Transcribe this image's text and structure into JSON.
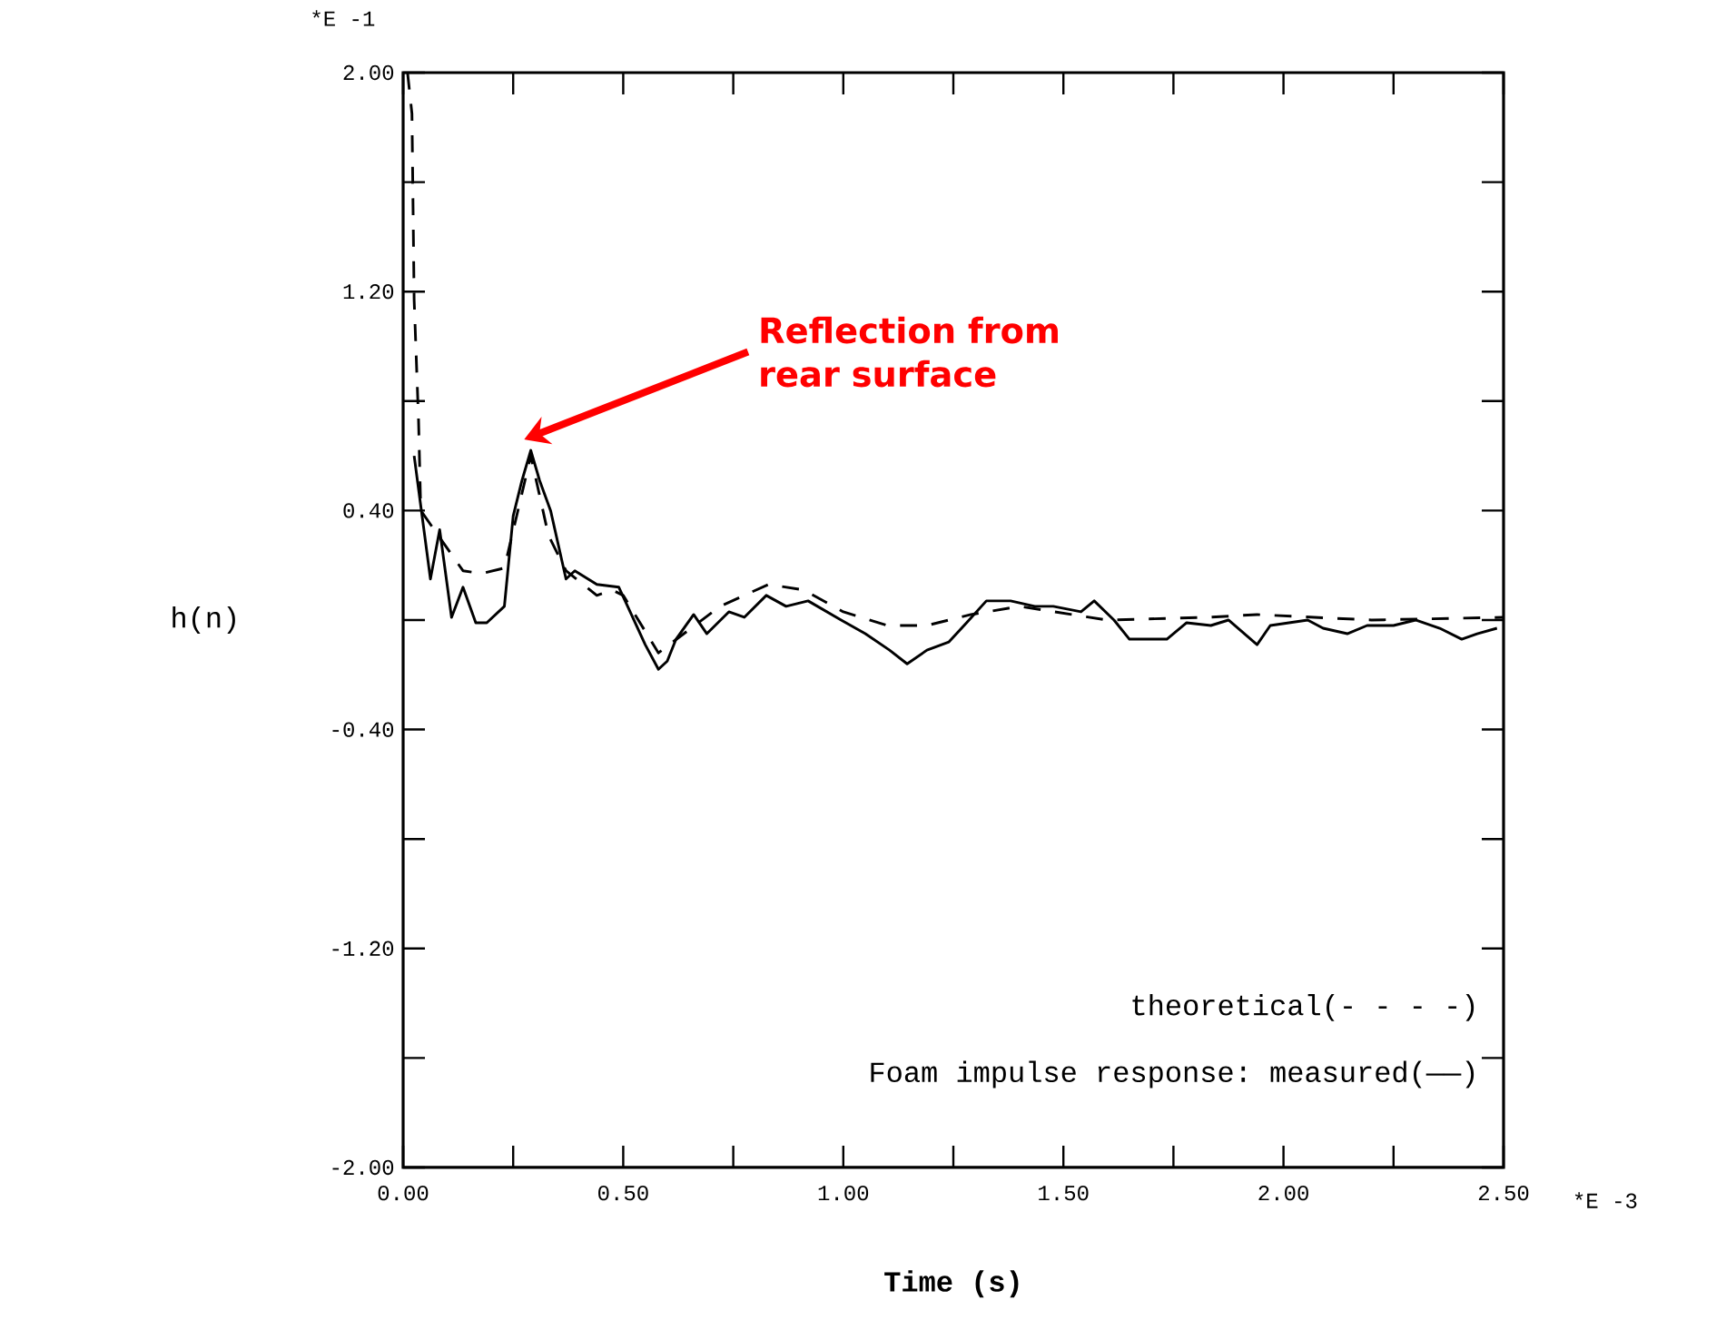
{
  "chart_data": {
    "type": "line",
    "xlabel": "Time (s)",
    "ylabel": "h(n)",
    "xlim": [
      0,
      2.5
    ],
    "ylim": [
      -2,
      2
    ],
    "xticks": [
      {
        "value": 0,
        "label": "0.00"
      },
      {
        "value": 0.25,
        "label": null
      },
      {
        "value": 0.5,
        "label": "0.50"
      },
      {
        "value": 0.75,
        "label": null
      },
      {
        "value": 1,
        "label": "1.00"
      },
      {
        "value": 1.25,
        "label": null
      },
      {
        "value": 1.5,
        "label": "1.50"
      },
      {
        "value": 1.75,
        "label": null
      },
      {
        "value": 2,
        "label": "2.00"
      },
      {
        "value": 2.25,
        "label": null
      },
      {
        "value": 2.5,
        "label": "2.50"
      }
    ],
    "yticks": [
      {
        "value": -2,
        "label": "-2.00"
      },
      {
        "value": -1.6,
        "label": null
      },
      {
        "value": -1.2,
        "label": "-1.20"
      },
      {
        "value": -0.8,
        "label": null
      },
      {
        "value": -0.4,
        "label": "-0.40"
      },
      {
        "value": 0,
        "label": null
      },
      {
        "value": 0.4,
        "label": "0.40"
      },
      {
        "value": 0.8,
        "label": null
      },
      {
        "value": 1.2,
        "label": "1.20"
      },
      {
        "value": 1.6,
        "label": null
      },
      {
        "value": 2,
        "label": "2.00"
      }
    ],
    "series": [
      {
        "color": "#000000",
        "line_style": "dashed",
        "x": [
          0.01,
          0.02,
          0.025,
          0.035,
          0.04,
          0.136,
          0.178,
          0.23,
          0.29,
          0.33,
          0.37,
          0.44,
          0.475,
          0.5,
          0.58,
          0.72,
          0.83,
          0.91,
          1.0,
          1.1,
          1.19,
          1.29,
          1.4,
          1.6,
          1.83,
          1.94,
          2.2,
          2.5
        ],
        "values": [
          2.0,
          1.85,
          1.17,
          0.73,
          0.4,
          0.18,
          0.17,
          0.19,
          0.6,
          0.31,
          0.18,
          0.09,
          0.11,
          0.09,
          -0.12,
          0.05,
          0.13,
          0.11,
          0.03,
          -0.02,
          -0.02,
          0.02,
          0.05,
          0.0,
          0.01,
          0.02,
          0.0,
          0.01
        ]
      },
      {
        "color": "#000000",
        "line_style": "solid",
        "x": [
          0.025,
          0.062,
          0.083,
          0.11,
          0.136,
          0.165,
          0.19,
          0.23,
          0.25,
          0.27,
          0.29,
          0.31,
          0.335,
          0.37,
          0.39,
          0.44,
          0.49,
          0.51,
          0.55,
          0.58,
          0.6,
          0.62,
          0.66,
          0.69,
          0.74,
          0.775,
          0.825,
          0.87,
          0.92,
          0.995,
          1.05,
          1.105,
          1.145,
          1.19,
          1.24,
          1.28,
          1.325,
          1.38,
          1.435,
          1.477,
          1.54,
          1.57,
          1.615,
          1.65,
          1.735,
          1.78,
          1.835,
          1.875,
          1.94,
          1.97,
          2.055,
          2.09,
          2.145,
          2.19,
          2.25,
          2.3,
          2.355,
          2.405,
          2.44,
          2.485
        ],
        "values": [
          0.6,
          0.15,
          0.33,
          0.01,
          0.12,
          -0.01,
          -0.01,
          0.05,
          0.38,
          0.51,
          0.62,
          0.51,
          0.4,
          0.15,
          0.18,
          0.13,
          0.12,
          0.05,
          -0.09,
          -0.18,
          -0.15,
          -0.07,
          0.02,
          -0.05,
          0.03,
          0.01,
          0.09,
          0.05,
          0.07,
          0.0,
          -0.05,
          -0.11,
          -0.16,
          -0.11,
          -0.08,
          -0.01,
          0.07,
          0.07,
          0.05,
          0.05,
          0.03,
          0.07,
          0.0,
          -0.07,
          -0.07,
          -0.01,
          -0.02,
          0.0,
          -0.09,
          -0.02,
          0.0,
          -0.03,
          -0.05,
          -0.02,
          -0.02,
          0.0,
          -0.03,
          -0.07,
          -0.05,
          -0.03
        ]
      }
    ],
    "annotations": [
      "*E -1",
      "*E -3",
      "theoretical(- - - -)",
      "Foam impulse response: measured(——)",
      "Reflection from rear surface"
    ]
  }
}
